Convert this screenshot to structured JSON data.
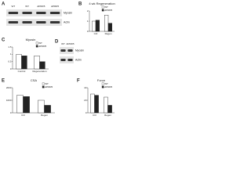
{
  "panels": [
    {
      "label": "A",
      "lanes": [
        "WT",
        "WT",
        "ΔPRR5",
        "ΔPRR5"
      ],
      "bands": [
        "Myosin",
        "Actin"
      ]
    },
    {
      "label": "B",
      "chart": {
        "type": "bar",
        "title": "4 wk Regeneration",
        "categories": [
          "Ctrl",
          "Regen"
        ],
        "series": [
          {
            "name": "WT",
            "color": "#ffffff",
            "values": [
              1,
              1.6
            ]
          },
          {
            "name": "ΔPRR5",
            "color": "#222222",
            "values": [
              1.1,
              0.8
            ]
          }
        ],
        "ylim": [
          0,
          2
        ],
        "yticks": [
          0,
          1,
          2
        ]
      }
    },
    {
      "label": "C",
      "chart": {
        "type": "bar",
        "title": "Myosin",
        "categories": [
          "Control",
          "Regeneration"
        ],
        "series": [
          {
            "name": "WT",
            "color": "#ffffff",
            "values": [
              1,
              0.9
            ]
          },
          {
            "name": "ΔPRR5",
            "color": "#222222",
            "values": [
              0.9,
              0.5
            ]
          }
        ],
        "ylim": [
          0,
          1.5
        ],
        "yticks": [
          0,
          0.5,
          1,
          1.5
        ]
      }
    },
    {
      "label": "D",
      "lanes": [
        "WT",
        "ΔPRR5"
      ],
      "bands": [
        "Myosin",
        "Actin"
      ]
    },
    {
      "label": "E",
      "chart": {
        "type": "bar",
        "title": "CSA",
        "categories": [
          "Ctrl",
          "Regen"
        ],
        "series": [
          {
            "name": "WT",
            "color": "#ffffff",
            "values": [
              1400,
              1000
            ]
          },
          {
            "name": "ΔPRR5",
            "color": "#222222",
            "values": [
              1300,
              600
            ]
          }
        ],
        "ylim": [
          0,
          2000
        ],
        "yticks": [
          0,
          1000,
          2000
        ]
      }
    },
    {
      "label": "F",
      "chart": {
        "type": "bar",
        "title": "Force",
        "categories": [
          "Ctrl",
          "Regen"
        ],
        "series": [
          {
            "name": "WT",
            "color": "#ffffff",
            "values": [
              30,
              25
            ]
          },
          {
            "name": "ΔPRR5",
            "color": "#222222",
            "values": [
              28,
              12
            ]
          }
        ],
        "ylim": [
          0,
          40
        ],
        "yticks": [
          0,
          20,
          40
        ]
      }
    }
  ]
}
